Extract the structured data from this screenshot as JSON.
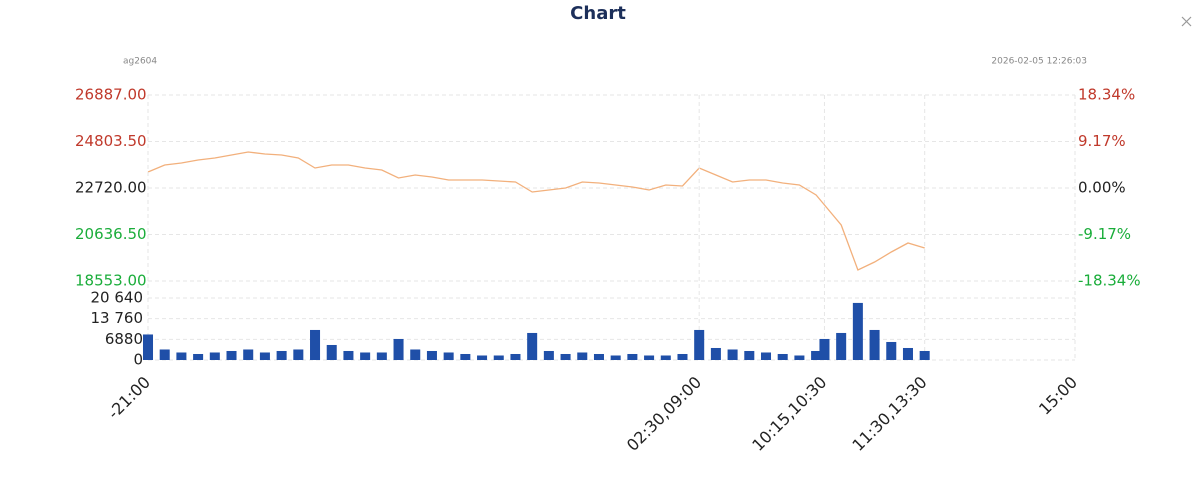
{
  "header": {
    "title": "Chart",
    "symbol": "ag2604",
    "timestamp": "2026-02-05 12:26:03"
  },
  "chart_data": [
    {
      "type": "line",
      "color": "#f2b07c",
      "up_color": "#c0392b",
      "down_color": "#1aad3a",
      "neutral_color": "#222222",
      "grid": true,
      "x": [
        0,
        10,
        20,
        30,
        40,
        50,
        60,
        70,
        80,
        90,
        100,
        110,
        120,
        130,
        140,
        150,
        160,
        170,
        180,
        190,
        200,
        210,
        220,
        230,
        240,
        250,
        260,
        270,
        280,
        290,
        300,
        310,
        320,
        330,
        340,
        350,
        360,
        370,
        380,
        390,
        400,
        405,
        415,
        425,
        435,
        445,
        455,
        465
      ],
      "values": [
        23437,
        23751,
        23840,
        23975,
        24065,
        24199,
        24333,
        24244,
        24199,
        24065,
        23617,
        23751,
        23751,
        23617,
        23527,
        23169,
        23303,
        23214,
        23079,
        23079,
        23079,
        23034,
        22990,
        22541,
        22631,
        22720,
        22990,
        22945,
        22855,
        22766,
        22631,
        22855,
        22810,
        23617,
        23303,
        22990,
        23079,
        23079,
        22945,
        22855,
        22407,
        21959,
        21063,
        19047,
        19405,
        19853,
        20257,
        20033
      ],
      "xlim": [
        0,
        555
      ],
      "ylim": [
        18553,
        26887
      ],
      "yticks": [
        {
          "value": 18553,
          "label": "18553.00"
        },
        {
          "value": 20636.5,
          "label": "20636.50"
        },
        {
          "value": 22720,
          "label": "22720.00"
        },
        {
          "value": 24803.5,
          "label": "24803.50"
        },
        {
          "value": 26887,
          "label": "26887.00"
        }
      ],
      "y2lim": [
        -18.34,
        18.34
      ],
      "y2ticks": [
        {
          "value": -18.34,
          "label": "-18.34%"
        },
        {
          "value": -9.17,
          "label": "-9.17%"
        },
        {
          "value": 0,
          "label": "0.00%"
        },
        {
          "value": 9.17,
          "label": "9.17%"
        },
        {
          "value": 18.34,
          "label": "18.34%"
        }
      ]
    },
    {
      "type": "bar",
      "color": "#1f4fa8",
      "grid": true,
      "x": [
        0,
        10,
        20,
        30,
        40,
        50,
        60,
        70,
        80,
        90,
        100,
        110,
        120,
        130,
        140,
        150,
        160,
        170,
        180,
        190,
        200,
        210,
        220,
        230,
        240,
        250,
        260,
        270,
        280,
        290,
        300,
        310,
        320,
        330,
        340,
        350,
        360,
        370,
        380,
        390,
        400,
        405,
        415,
        425,
        435,
        445,
        455,
        465
      ],
      "values": [
        8500,
        3500,
        2500,
        2000,
        2500,
        3000,
        3500,
        2500,
        3000,
        3500,
        10000,
        5000,
        3000,
        2500,
        2500,
        7000,
        3500,
        3000,
        2500,
        2000,
        1500,
        1500,
        2000,
        9000,
        3000,
        2000,
        2500,
        2000,
        1500,
        2000,
        1500,
        1500,
        2000,
        10000,
        4000,
        3500,
        3000,
        2500,
        2000,
        1500,
        3000,
        7000,
        9000,
        19000,
        10000,
        6000,
        4000,
        3000
      ],
      "xlim": [
        0,
        555
      ],
      "xticks": [
        {
          "value": 0,
          "label": "-21:00"
        },
        {
          "value": 330,
          "label": "02:30,09:00"
        },
        {
          "value": 405,
          "label": "10:15,10:30"
        },
        {
          "value": 465,
          "label": "11:30,13:30"
        },
        {
          "value": 555,
          "label": "15:00"
        }
      ],
      "ylim": [
        0,
        20640
      ],
      "yticks": [
        0,
        6880,
        {
          "value": 13760,
          "label": "13 760"
        },
        {
          "value": 20640,
          "label": "20 640"
        }
      ]
    }
  ]
}
